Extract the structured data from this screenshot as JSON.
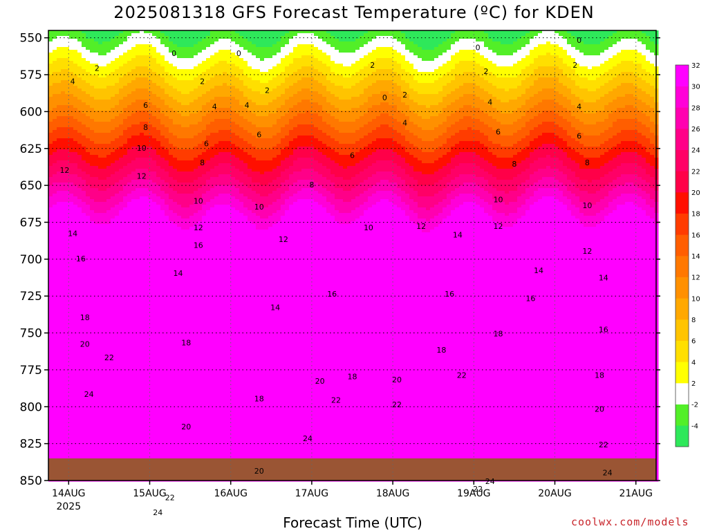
{
  "title": "2025081318 GFS Forecast Temperature (ºC) for KDEN",
  "credit": "coolwx.com/models",
  "chart_data": {
    "type": "heatmap",
    "title": "2025081318 GFS Forecast Temperature (ºC) for KDEN",
    "xlabel": "Forecast Time (UTC)",
    "ylabel": "",
    "x_ticks": [
      "14AUG",
      "15AUG",
      "16AUG",
      "17AUG",
      "18AUG",
      "19AUG",
      "20AUG",
      "21AUG"
    ],
    "x_sublabel": "2025",
    "x_range_days": [
      -0.25,
      7.25
    ],
    "y_ticks": [
      550,
      575,
      600,
      625,
      650,
      675,
      700,
      725,
      750,
      775,
      800,
      825,
      850
    ],
    "y_range": [
      545,
      850
    ],
    "surface_pressure": 835,
    "colorbar": {
      "ticks": [
        -4,
        -2,
        2,
        4,
        6,
        8,
        10,
        12,
        14,
        16,
        18,
        20,
        22,
        24,
        26,
        28,
        30,
        32
      ],
      "colors": [
        "#2ee85a",
        "#52ef28",
        "#ffffff",
        "#ffff00",
        "#ffdf00",
        "#ffc400",
        "#ffa800",
        "#ff9000",
        "#ff7800",
        "#ff5e00",
        "#ff3c00",
        "#ff0f00",
        "#ff0048",
        "#ff0066",
        "#ff0088",
        "#ff00b0",
        "#ff00d8",
        "#ff00ff"
      ]
    },
    "contour_labels": [
      {
        "v": "0",
        "t": 1.3,
        "p": 561
      },
      {
        "v": "0",
        "t": 2.1,
        "p": 561
      },
      {
        "v": "0",
        "t": 3.9,
        "p": 591
      },
      {
        "v": "0",
        "t": 5.05,
        "p": 557
      },
      {
        "v": "0",
        "t": 6.3,
        "p": 552
      },
      {
        "v": "2",
        "t": 0.35,
        "p": 571
      },
      {
        "v": "2",
        "t": 1.65,
        "p": 580
      },
      {
        "v": "2",
        "t": 2.45,
        "p": 586
      },
      {
        "v": "2",
        "t": 3.75,
        "p": 569
      },
      {
        "v": "2",
        "t": 4.15,
        "p": 589
      },
      {
        "v": "2",
        "t": 5.15,
        "p": 573
      },
      {
        "v": "2",
        "t": 6.25,
        "p": 569
      },
      {
        "v": "4",
        "t": 0.05,
        "p": 580
      },
      {
        "v": "4",
        "t": 1.8,
        "p": 597
      },
      {
        "v": "4",
        "t": 2.2,
        "p": 596
      },
      {
        "v": "4",
        "t": 4.15,
        "p": 608
      },
      {
        "v": "4",
        "t": 5.2,
        "p": 594
      },
      {
        "v": "4",
        "t": 6.3,
        "p": 597
      },
      {
        "v": "6",
        "t": 0.95,
        "p": 596
      },
      {
        "v": "6",
        "t": 1.7,
        "p": 622
      },
      {
        "v": "6",
        "t": 2.35,
        "p": 616
      },
      {
        "v": "6",
        "t": 3.5,
        "p": 630
      },
      {
        "v": "6",
        "t": 5.3,
        "p": 614
      },
      {
        "v": "6",
        "t": 6.3,
        "p": 617
      },
      {
        "v": "8",
        "t": 0.95,
        "p": 611
      },
      {
        "v": "8",
        "t": 1.65,
        "p": 635
      },
      {
        "v": "8",
        "t": 3,
        "p": 650
      },
      {
        "v": "8",
        "t": 5.5,
        "p": 636
      },
      {
        "v": "8",
        "t": 6.4,
        "p": 635
      },
      {
        "v": "10",
        "t": 0.9,
        "p": 625
      },
      {
        "v": "10",
        "t": 1.6,
        "p": 661
      },
      {
        "v": "10",
        "t": 2.35,
        "p": 665
      },
      {
        "v": "10",
        "t": 3.7,
        "p": 679
      },
      {
        "v": "10",
        "t": 5.3,
        "p": 660
      },
      {
        "v": "10",
        "t": 6.4,
        "p": 664
      },
      {
        "v": "12",
        "t": -0.05,
        "p": 640
      },
      {
        "v": "12",
        "t": 0.9,
        "p": 644
      },
      {
        "v": "12",
        "t": 1.6,
        "p": 679
      },
      {
        "v": "12",
        "t": 2.65,
        "p": 687
      },
      {
        "v": "12",
        "t": 4.35,
        "p": 678
      },
      {
        "v": "12",
        "t": 5.3,
        "p": 678
      },
      {
        "v": "12",
        "t": 6.4,
        "p": 695
      },
      {
        "v": "14",
        "t": 0.05,
        "p": 683
      },
      {
        "v": "14",
        "t": 1.35,
        "p": 710
      },
      {
        "v": "14",
        "t": 2.55,
        "p": 733
      },
      {
        "v": "14",
        "t": 4.8,
        "p": 684
      },
      {
        "v": "14",
        "t": 5.8,
        "p": 708
      },
      {
        "v": "14",
        "t": 6.6,
        "p": 713
      },
      {
        "v": "16",
        "t": 0.15,
        "p": 700
      },
      {
        "v": "16",
        "t": 1.6,
        "p": 691
      },
      {
        "v": "16",
        "t": 3.25,
        "p": 724
      },
      {
        "v": "16",
        "t": 4.7,
        "p": 724
      },
      {
        "v": "16",
        "t": 5.7,
        "p": 727
      },
      {
        "v": "16",
        "t": 6.6,
        "p": 748
      },
      {
        "v": "18",
        "t": 0.2,
        "p": 740
      },
      {
        "v": "18",
        "t": 1.45,
        "p": 757
      },
      {
        "v": "18",
        "t": 2.35,
        "p": 795
      },
      {
        "v": "18",
        "t": 3.5,
        "p": 780
      },
      {
        "v": "18",
        "t": 4.6,
        "p": 762
      },
      {
        "v": "18",
        "t": 5.3,
        "p": 751
      },
      {
        "v": "18",
        "t": 6.55,
        "p": 779
      },
      {
        "v": "20",
        "t": 0.2,
        "p": 758
      },
      {
        "v": "20",
        "t": 1.45,
        "p": 814
      },
      {
        "v": "20",
        "t": 2.35,
        "p": 844
      },
      {
        "v": "20",
        "t": 3.1,
        "p": 783
      },
      {
        "v": "20",
        "t": 4.05,
        "p": 782
      },
      {
        "v": "20",
        "t": 6.55,
        "p": 802
      },
      {
        "v": "22",
        "t": 0.5,
        "p": 767
      },
      {
        "v": "22",
        "t": 1.25,
        "p": 862
      },
      {
        "v": "22",
        "t": 3.3,
        "p": 796
      },
      {
        "v": "22",
        "t": 4.05,
        "p": 799
      },
      {
        "v": "22",
        "t": 4.85,
        "p": 779
      },
      {
        "v": "22",
        "t": 5.05,
        "p": 856
      },
      {
        "v": "22",
        "t": 6.6,
        "p": 826
      },
      {
        "v": "24",
        "t": 0.25,
        "p": 792
      },
      {
        "v": "24",
        "t": 1.1,
        "p": 872
      },
      {
        "v": "24",
        "t": 2.95,
        "p": 822
      },
      {
        "v": "24",
        "t": 5.2,
        "p": 851
      },
      {
        "v": "24",
        "t": 6.65,
        "p": 845
      }
    ]
  }
}
